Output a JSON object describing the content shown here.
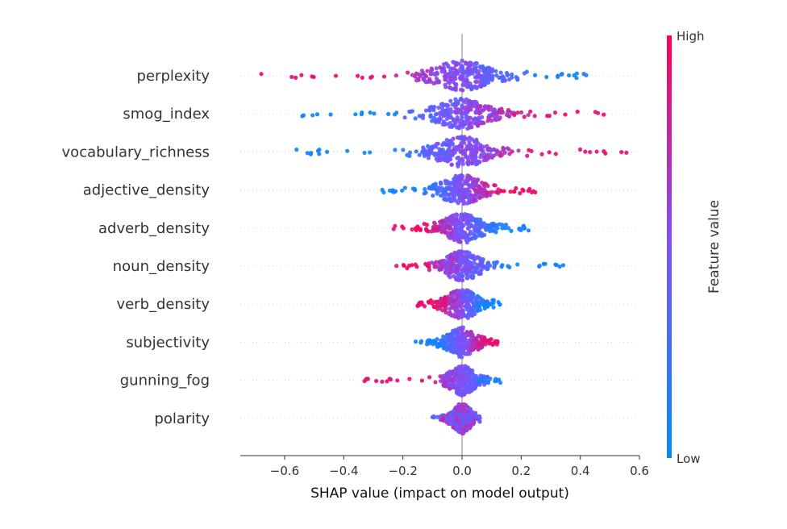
{
  "chart_data": {
    "type": "scatter",
    "subtype": "shap-beeswarm-summary",
    "title": "",
    "xlabel": "SHAP value (impact on model output)",
    "ylabel": "",
    "xlim": [
      -0.75,
      0.6
    ],
    "x_ticks": [
      -0.6,
      -0.4,
      -0.2,
      0.0,
      0.2,
      0.4,
      0.6
    ],
    "x_tick_labels": [
      "−0.6",
      "−0.4",
      "−0.2",
      "0.0",
      "0.2",
      "0.4",
      "0.6"
    ],
    "grid": false,
    "colorbar": {
      "label": "Feature value",
      "high_label": "High",
      "low_label": "Low",
      "high_color": "#ff0052",
      "low_color": "#008bfb"
    },
    "features": [
      {
        "name": "perplexity",
        "min": -0.68,
        "max": 0.42,
        "direction": "high_negative",
        "spread": 0.18
      },
      {
        "name": "smog_index",
        "min": -0.55,
        "max": 0.48,
        "direction": "high_positive",
        "spread": 0.17
      },
      {
        "name": "vocabulary_richness",
        "min": -0.59,
        "max": 0.56,
        "direction": "high_positive",
        "spread": 0.16
      },
      {
        "name": "adjective_density",
        "min": -0.27,
        "max": 0.25,
        "direction": "high_positive",
        "spread": 0.13
      },
      {
        "name": "adverb_density",
        "min": -0.25,
        "max": 0.24,
        "direction": "high_negative",
        "spread": 0.12
      },
      {
        "name": "noun_density",
        "min": -0.24,
        "max": 0.35,
        "direction": "high_negative",
        "spread": 0.11
      },
      {
        "name": "verb_density",
        "min": -0.15,
        "max": 0.13,
        "direction": "high_negative",
        "spread": 0.1
      },
      {
        "name": "subjectivity",
        "min": -0.16,
        "max": 0.12,
        "direction": "high_positive",
        "spread": 0.09
      },
      {
        "name": "gunning_fog",
        "min": -0.33,
        "max": 0.14,
        "direction": "high_negative",
        "spread": 0.08
      },
      {
        "name": "polarity",
        "min": -0.1,
        "max": 0.06,
        "direction": "mixed",
        "spread": 0.06
      }
    ]
  }
}
